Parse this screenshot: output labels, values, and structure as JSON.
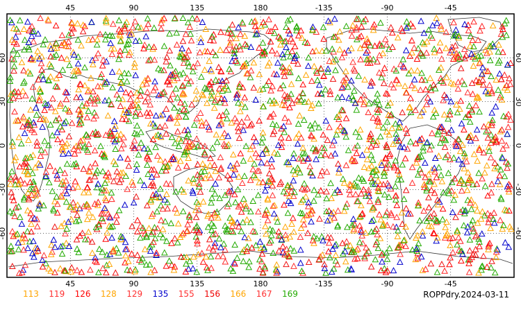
{
  "map": {
    "product_label": "ROPPdry.2024-03-11",
    "lon_ticks": [
      {
        "lon": 45,
        "label": "45"
      },
      {
        "lon": 90,
        "label": "90"
      },
      {
        "lon": 135,
        "label": "135"
      },
      {
        "lon": 180,
        "label": "180"
      },
      {
        "lon": 225,
        "label": "-135"
      },
      {
        "lon": 270,
        "label": "-90"
      },
      {
        "lon": 315,
        "label": "-45"
      }
    ],
    "lat_ticks": [
      {
        "lat": 60,
        "label": "60"
      },
      {
        "lat": 30,
        "label": "30"
      },
      {
        "lat": 0,
        "label": "0"
      },
      {
        "lat": -30,
        "label": "-30"
      },
      {
        "lat": -60,
        "label": "-60"
      }
    ],
    "lon_range": [
      0,
      360
    ],
    "lat_range": [
      -90,
      90
    ],
    "grid": "dotted",
    "marker_shape": "triangle",
    "legend": [
      {
        "label": "113",
        "color": "#ffa500"
      },
      {
        "label": "119",
        "color": "#ff3030"
      },
      {
        "label": "126",
        "color": "#ff0000"
      },
      {
        "label": "128",
        "color": "#ffa500"
      },
      {
        "label": "129",
        "color": "#ff3030"
      },
      {
        "label": "135",
        "color": "#0000cc"
      },
      {
        "label": "155",
        "color": "#ff3030"
      },
      {
        "label": "156",
        "color": "#ee0000"
      },
      {
        "label": "166",
        "color": "#ffa500"
      },
      {
        "label": "167",
        "color": "#ff3030"
      },
      {
        "label": "169",
        "color": "#22aa00"
      }
    ]
  }
}
